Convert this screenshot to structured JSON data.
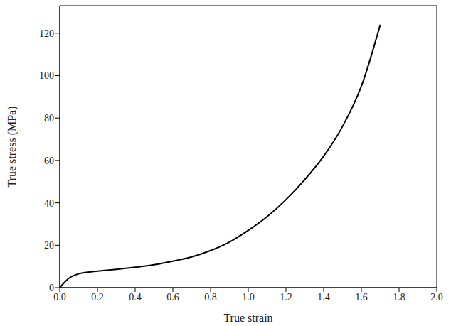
{
  "chart_data": {
    "type": "line",
    "xlabel": "True strain",
    "ylabel": "True stress (MPa)",
    "x": [
      0,
      0.02,
      0.05,
      0.1,
      0.15,
      0.2,
      0.3,
      0.4,
      0.5,
      0.6,
      0.7,
      0.8,
      0.9,
      1.0,
      1.1,
      1.2,
      1.3,
      1.4,
      1.5,
      1.6,
      1.7
    ],
    "values": [
      0,
      2,
      4.5,
      6.5,
      7.3,
      7.8,
      8.6,
      9.6,
      10.8,
      12.5,
      14.5,
      17.5,
      21.5,
      27,
      33.5,
      41.5,
      51,
      62,
      76,
      95,
      124
    ],
    "color": "#000000",
    "xlim": [
      0,
      2
    ],
    "xticks": [
      {
        "value": 0,
        "label": "0.0"
      },
      0.2,
      0.4,
      0.6,
      0.8,
      {
        "value": 1,
        "label": "1.0"
      },
      1.2,
      1.4,
      1.6,
      1.8,
      {
        "value": 2,
        "label": "2.0"
      }
    ],
    "ylim": [
      0,
      133
    ],
    "yticks": [
      0,
      20,
      40,
      60,
      80,
      100,
      120
    ]
  }
}
